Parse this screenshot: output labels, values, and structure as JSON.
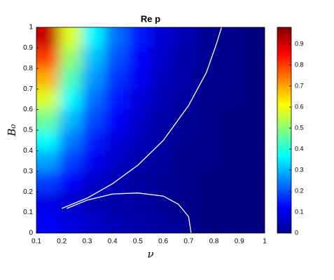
{
  "chart_data": {
    "type": "heatmap",
    "title": "Re p",
    "xlabel": "ν",
    "ylabel": "B₀",
    "colormap": "jet",
    "x": [
      0.145,
      0.235,
      0.325,
      0.415,
      0.505,
      0.595,
      0.685,
      0.775,
      0.865,
      0.955
    ],
    "y": [
      0.95,
      0.85,
      0.75,
      0.65,
      0.55,
      0.45,
      0.35,
      0.25,
      0.15,
      0.05
    ],
    "z": [
      [
        0.91,
        0.58,
        0.36,
        0.23,
        0.14,
        0.08,
        0.05,
        0.02,
        0.01,
        0
      ],
      [
        0.8,
        0.51,
        0.31,
        0.2,
        0.12,
        0.07,
        0.04,
        0.02,
        0.01,
        0
      ],
      [
        0.69,
        0.44,
        0.27,
        0.17,
        0.11,
        0.06,
        0.04,
        0.01,
        0.01,
        0
      ],
      [
        0.58,
        0.37,
        0.23,
        0.14,
        0.09,
        0.05,
        0.03,
        0.01,
        0.01,
        0
      ],
      [
        0.47,
        0.3,
        0.19,
        0.12,
        0.07,
        0.04,
        0.02,
        0.01,
        0,
        0
      ],
      [
        0.37,
        0.24,
        0.15,
        0.09,
        0.06,
        0.03,
        0.02,
        0.01,
        0,
        0
      ],
      [
        0.28,
        0.18,
        0.11,
        0.07,
        0.04,
        0.03,
        0.01,
        0.01,
        0,
        0
      ],
      [
        0.18,
        0.12,
        0.07,
        0.05,
        0.03,
        0.02,
        0.01,
        0,
        0,
        0
      ],
      [
        0.1,
        0.07,
        0.05,
        0.04,
        0.03,
        0.02,
        0.01,
        0,
        0,
        0
      ],
      [
        0.12,
        0.09,
        0.07,
        0.05,
        0.04,
        0.03,
        0.02,
        0,
        0,
        0
      ]
    ],
    "contours": [
      {
        "color": "#ffffff",
        "x": [
          0.2,
          0.3,
          0.4,
          0.5,
          0.6,
          0.7,
          0.77,
          0.81,
          0.83
        ],
        "y": [
          0.12,
          0.17,
          0.24,
          0.33,
          0.45,
          0.62,
          0.78,
          0.92,
          1
        ]
      },
      {
        "color": "#ffffff",
        "x": [
          0.22,
          0.3,
          0.4,
          0.5,
          0.6,
          0.66,
          0.7,
          0.71
        ],
        "y": [
          0.12,
          0.16,
          0.19,
          0.195,
          0.18,
          0.14,
          0.08,
          0
        ]
      }
    ],
    "xlim": [
      0.1,
      1
    ],
    "ylim": [
      0,
      1
    ],
    "clim": [
      0,
      0.98
    ],
    "xticks": [
      0.1,
      0.2,
      0.3,
      0.4,
      0.5,
      0.6,
      0.7,
      0.8,
      0.9,
      1
    ],
    "yticks": [
      0,
      0.1,
      0.2,
      0.3,
      0.4,
      0.5,
      0.6,
      0.7,
      0.8,
      0.9,
      1
    ],
    "cticks": [
      0,
      0.1,
      0.2,
      0.3,
      0.4,
      0.5,
      0.6,
      0.7,
      0.8,
      0.9
    ]
  }
}
